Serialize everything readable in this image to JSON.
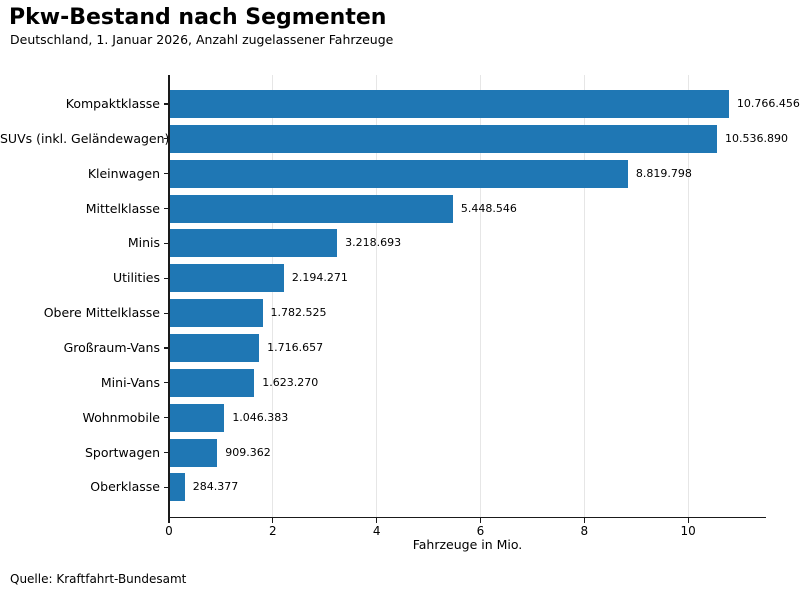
{
  "chart_data": {
    "type": "bar",
    "orientation": "horizontal",
    "title": "Pkw-Bestand nach Segmenten",
    "subtitle": "Deutschland, 1. Januar 2026, Anzahl zugelassener Fahrzeuge",
    "categories": [
      "Kompaktklasse",
      "SUVs (inkl. Geländewagen)",
      "Kleinwagen",
      "Mittelklasse",
      "Minis",
      "Utilities",
      "Obere Mittelklasse",
      "Großraum-Vans",
      "Mini-Vans",
      "Wohnmobile",
      "Sportwagen",
      "Oberklasse"
    ],
    "values": [
      10766456,
      10536890,
      8819798,
      5448546,
      3218693,
      2194271,
      1782525,
      1716657,
      1623270,
      1046383,
      909362,
      284377
    ],
    "value_labels": [
      "10.766.456",
      "10.536.890",
      "8.819.798",
      "5.448.546",
      "3.218.693",
      "2.194.271",
      "1.782.525",
      "1.716.657",
      "1.623.270",
      "1.046.383",
      "909.362",
      "284.377"
    ],
    "xlabel": "Fahrzeuge in Mio.",
    "xticks": [
      0,
      2,
      4,
      6,
      8,
      10
    ],
    "xlim": [
      0,
      11.5
    ],
    "unit_divisor": 1000000,
    "grid": "vertical-light",
    "legend": "none",
    "bar_color": "#1f77b4",
    "gridline_color": "#e6e6e6",
    "spine_color": "#1a1a1a"
  },
  "footer": {
    "source": "Quelle: Kraftfahrt-Bundesamt"
  }
}
